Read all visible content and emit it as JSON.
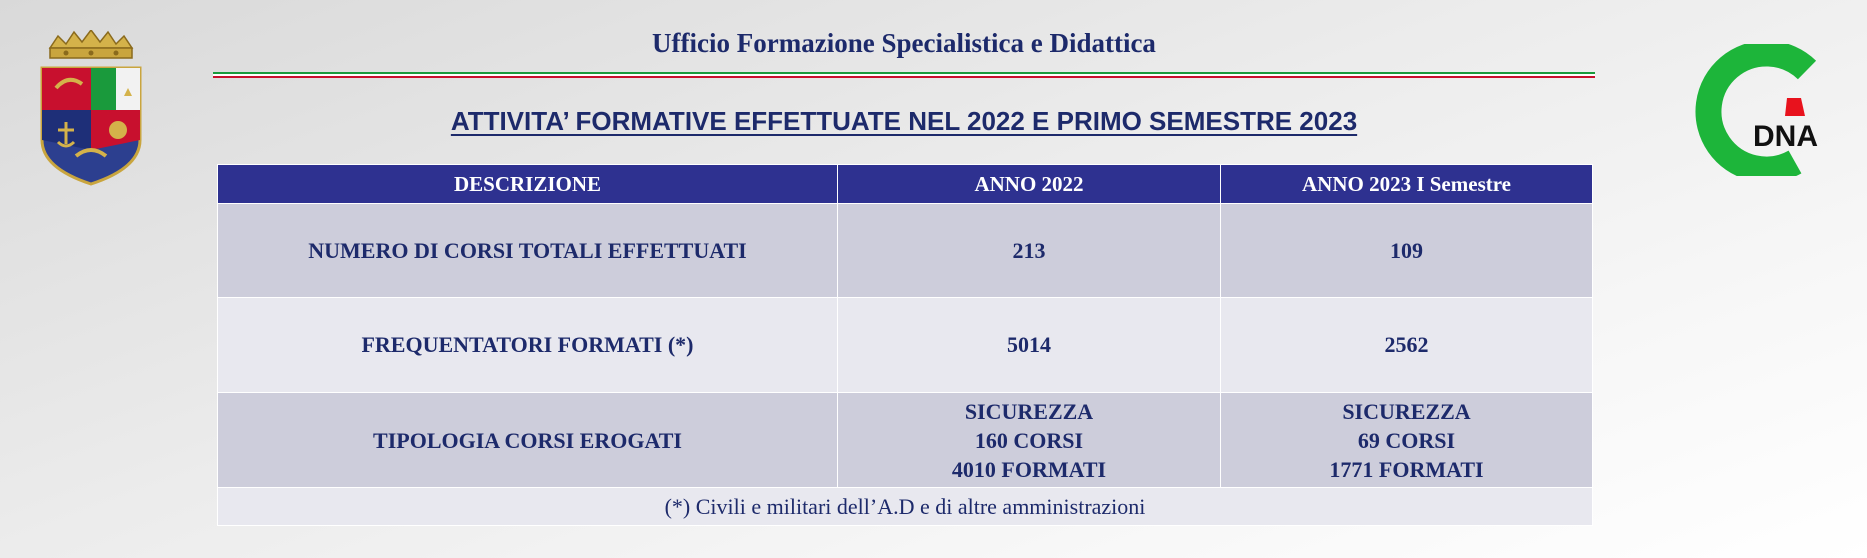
{
  "header": {
    "office_title": "Ufficio Formazione  Specialistica  e Didattica",
    "main_title": "ATTIVITA’ FORMATIVE EFFETTUATE NEL 2022 E PRIMO SEMESTRE 2023",
    "tricolor": [
      "#1a9a3c",
      "#ffffff",
      "#c8102e"
    ]
  },
  "logo": {
    "text": "DNA",
    "ring_color": "#1db53a",
    "accent_color": "#e8121d"
  },
  "table": {
    "headers": [
      "DESCRIZIONE",
      "ANNO 2022",
      "ANNO 2023 I Semestre"
    ],
    "rows": [
      {
        "label": "NUMERO DI CORSI TOTALI EFFETTUATI",
        "y2022": "213",
        "y2023": "109"
      },
      {
        "label": "FREQUENTATORI  FORMATI (*)",
        "y2022": "5014",
        "y2023": "2562"
      },
      {
        "label": "TIPOLOGIA CORSI EROGATI",
        "y2022": [
          "SICUREZZA",
          "160 CORSI",
          "4010 FORMATI"
        ],
        "y2023": [
          "SICUREZZA",
          "69 CORSI",
          "1771 FORMATI"
        ]
      }
    ],
    "footnote": "(*) Civili  e militari  dell’A.D  e di altre amministrazioni"
  }
}
